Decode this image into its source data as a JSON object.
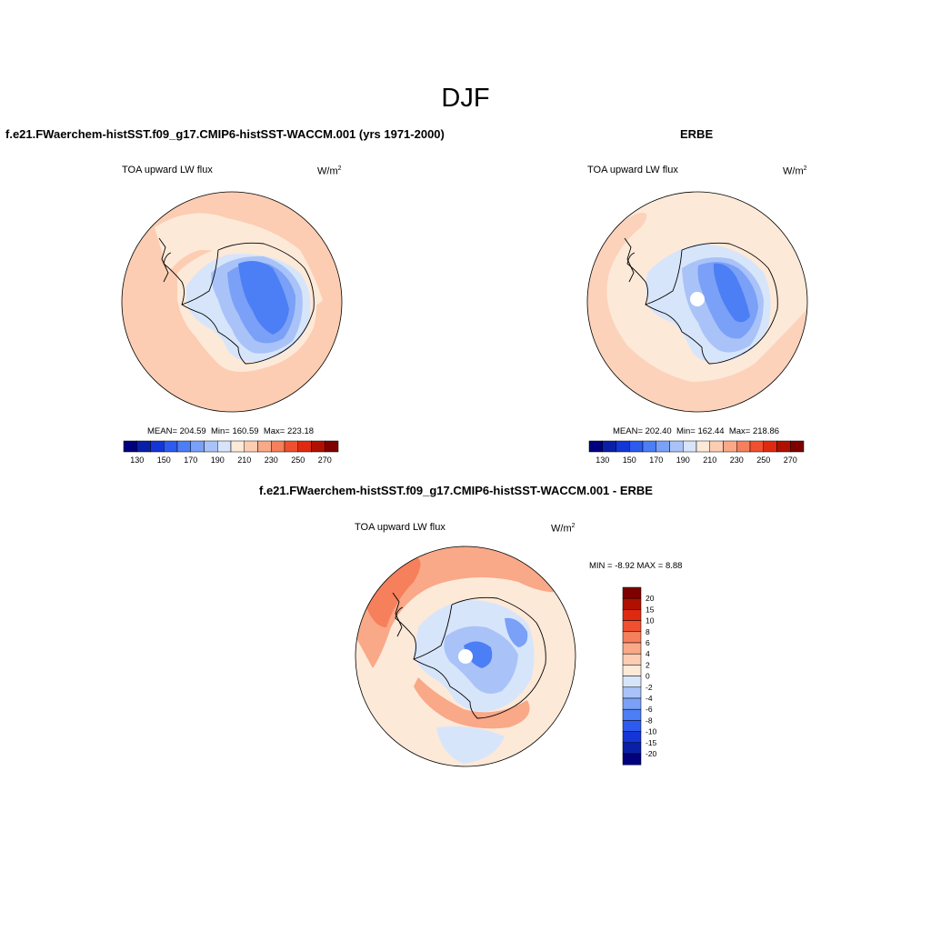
{
  "figure": {
    "season_title": "DJF"
  },
  "panels": {
    "model": {
      "title": "f.e21.FWaerchem-histSST.f09_g17.CMIP6-histSST-WACCM.001 (yrs 1971-2000)",
      "variable": "TOA upward LW flux",
      "units_base": "W/m",
      "units_exp": "2",
      "mean_label": "MEAN= 204.59",
      "min_label": "Min= 160.59",
      "max_label": "Max= 223.18"
    },
    "obs": {
      "title": "ERBE",
      "variable": "TOA upward LW flux",
      "units_base": "W/m",
      "units_exp": "2",
      "mean_label": "MEAN= 202.40",
      "min_label": "Min= 162.44",
      "max_label": "Max= 218.86"
    },
    "diff": {
      "title": "f.e21.FWaerchem-histSST.f09_g17.CMIP6-histSST-WACCM.001 - ERBE",
      "variable": "TOA upward LW flux",
      "units_base": "W/m",
      "units_exp": "2",
      "minmax_label": "MIN =  -8.92 MAX =   8.88"
    }
  },
  "colorbar_abs": {
    "colors": [
      "#00007f",
      "#0a1fa8",
      "#1436d6",
      "#2d5bf0",
      "#4c7ef5",
      "#7aa0f7",
      "#a9c3f8",
      "#d7e5fb",
      "#fde9d8",
      "#fccdb2",
      "#f9a888",
      "#f67f5c",
      "#f05030",
      "#e02a10",
      "#b01000",
      "#7f0000"
    ],
    "ticks": [
      "130",
      "150",
      "170",
      "190",
      "210",
      "230",
      "250",
      "270"
    ]
  },
  "colorbar_diff": {
    "colors_top_to_bottom": [
      "#7f0000",
      "#b01000",
      "#e02a10",
      "#f05030",
      "#f67f5c",
      "#f9a888",
      "#fccdb2",
      "#fde9d8",
      "#d7e5fb",
      "#a9c3f8",
      "#7aa0f7",
      "#4c7ef5",
      "#2d5bf0",
      "#1436d6",
      "#0a1fa8",
      "#00007f"
    ],
    "ticks": [
      "20",
      "15",
      "10",
      "8",
      "6",
      "4",
      "2",
      "0",
      "-2",
      "-4",
      "-6",
      "-8",
      "-10",
      "-15",
      "-20"
    ]
  },
  "map_colors": {
    "ocean_model": "#fccdb2",
    "ocean_obs": "#fde9d8",
    "ocean_diff": "#fde9d8",
    "level_lightblue": "#d7e5fb",
    "level_blue1": "#a9c3f8",
    "level_blue2": "#7aa0f7",
    "level_blue3": "#4c7ef5",
    "level_blue4": "#2d5bf0",
    "level_peach": "#fde9d8",
    "level_orange1": "#f9a888",
    "level_orange2": "#f67f5c",
    "coast": "#000000"
  }
}
